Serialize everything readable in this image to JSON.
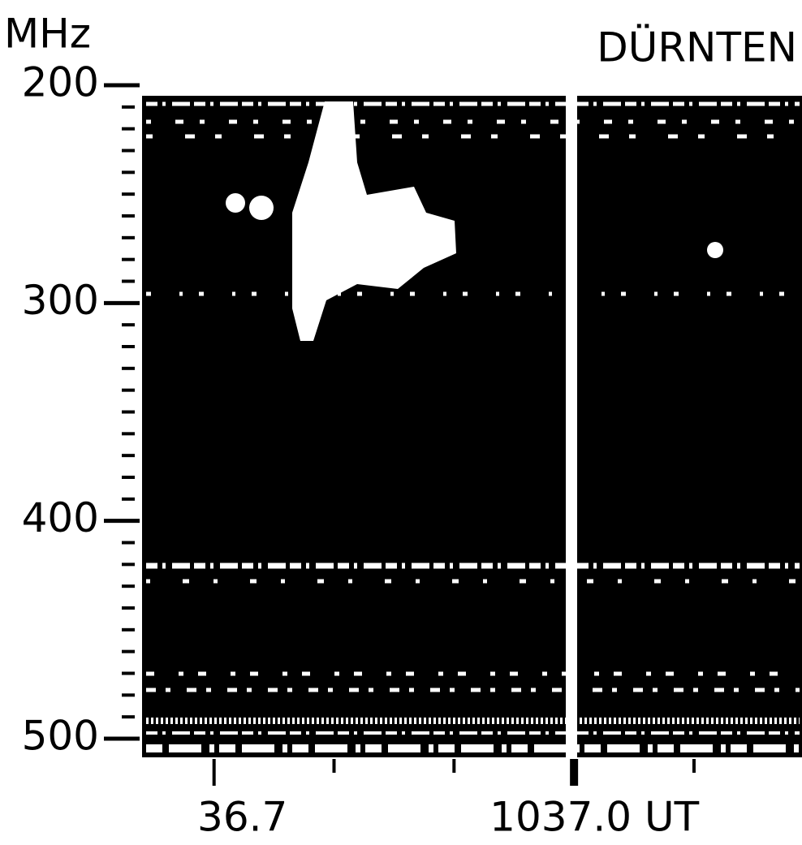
{
  "chart_data": {
    "type": "spectrogram",
    "title": "DÜRNTEN",
    "y_label": "MHz",
    "ylim": [
      500,
      200
    ],
    "yticks": [
      200,
      300,
      400,
      500
    ],
    "minor_yticks": [
      210,
      220,
      230,
      240,
      250,
      260,
      270,
      280,
      290,
      310,
      320,
      330,
      340,
      350,
      360,
      370,
      380,
      390,
      410,
      420,
      430,
      440,
      450,
      460,
      470,
      480,
      490
    ],
    "xlim": [
      36.64,
      37.19
    ],
    "xticks": [
      {
        "value": 36.7,
        "label": "36.7"
      },
      {
        "value": 37.0,
        "label": "1037.0 UT"
      }
    ],
    "minor_xticks": [
      36.8,
      36.9,
      37.1
    ],
    "grid": false
  }
}
